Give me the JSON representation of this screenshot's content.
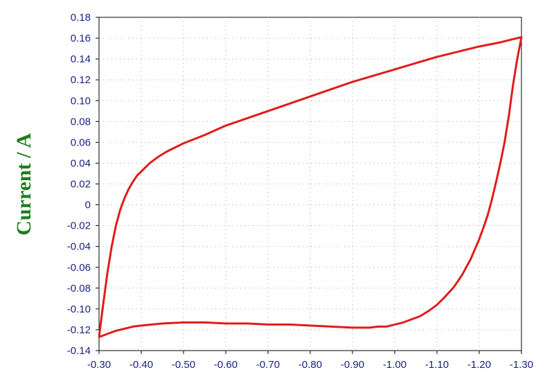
{
  "colors": {
    "ylabel": "#1e7d1e",
    "series": "#e01b1b",
    "tick_text": "#1a237e",
    "grid": "#9aa0a6"
  },
  "chart_data": {
    "type": "line",
    "title": "",
    "xlabel": "",
    "ylabel": "Current / A",
    "xlim": [
      -0.3,
      -1.3
    ],
    "ylim": [
      -0.14,
      0.18
    ],
    "x_ticks": [
      "-0.30",
      "-0.40",
      "-0.50",
      "-0.60",
      "-0.70",
      "-0.80",
      "-0.90",
      "-1.00",
      "-1.10",
      "-1.20",
      "-1.30"
    ],
    "y_ticks": [
      "0.18",
      "0.16",
      "0.14",
      "0.12",
      "0.10",
      "0.08",
      "0.06",
      "0.04",
      "0.02",
      "0",
      "-0.02",
      "-0.04",
      "-0.06",
      "-0.08",
      "-0.10",
      "-0.12",
      "-0.14"
    ],
    "grid": true,
    "legend": "none",
    "series": [
      {
        "x": [
          -0.3,
          -0.31,
          -0.32,
          -0.33,
          -0.34,
          -0.35,
          -0.36,
          -0.37,
          -0.38,
          -0.39,
          -0.4,
          -0.42,
          -0.44,
          -0.46,
          -0.48,
          -0.5,
          -0.55,
          -0.6,
          -0.65,
          -0.7,
          -0.75,
          -0.8,
          -0.85,
          -0.9,
          -0.95,
          -1.0,
          -1.05,
          -1.1,
          -1.15,
          -1.2,
          -1.25,
          -1.3,
          -1.3,
          -1.29,
          -1.28,
          -1.27,
          -1.26,
          -1.25,
          -1.24,
          -1.23,
          -1.22,
          -1.21,
          -1.2,
          -1.18,
          -1.16,
          -1.14,
          -1.12,
          -1.1,
          -1.08,
          -1.06,
          -1.04,
          -1.02,
          -1.0,
          -0.98,
          -0.96,
          -0.94,
          -0.9,
          -0.85,
          -0.8,
          -0.75,
          -0.7,
          -0.65,
          -0.6,
          -0.55,
          -0.5,
          -0.45,
          -0.4,
          -0.38,
          -0.36,
          -0.34,
          -0.32,
          -0.3
        ],
        "y": [
          -0.127,
          -0.095,
          -0.065,
          -0.04,
          -0.02,
          -0.005,
          0.006,
          0.015,
          0.022,
          0.028,
          0.032,
          0.04,
          0.046,
          0.051,
          0.055,
          0.059,
          0.067,
          0.076,
          0.083,
          0.09,
          0.097,
          0.104,
          0.111,
          0.118,
          0.124,
          0.13,
          0.136,
          0.142,
          0.147,
          0.152,
          0.156,
          0.161,
          0.161,
          0.14,
          0.115,
          0.085,
          0.06,
          0.04,
          0.022,
          0.005,
          -0.01,
          -0.022,
          -0.033,
          -0.052,
          -0.067,
          -0.079,
          -0.088,
          -0.096,
          -0.102,
          -0.107,
          -0.11,
          -0.113,
          -0.115,
          -0.117,
          -0.117,
          -0.118,
          -0.118,
          -0.117,
          -0.116,
          -0.115,
          -0.115,
          -0.114,
          -0.114,
          -0.113,
          -0.113,
          -0.114,
          -0.116,
          -0.117,
          -0.119,
          -0.121,
          -0.124,
          -0.127
        ]
      }
    ]
  }
}
